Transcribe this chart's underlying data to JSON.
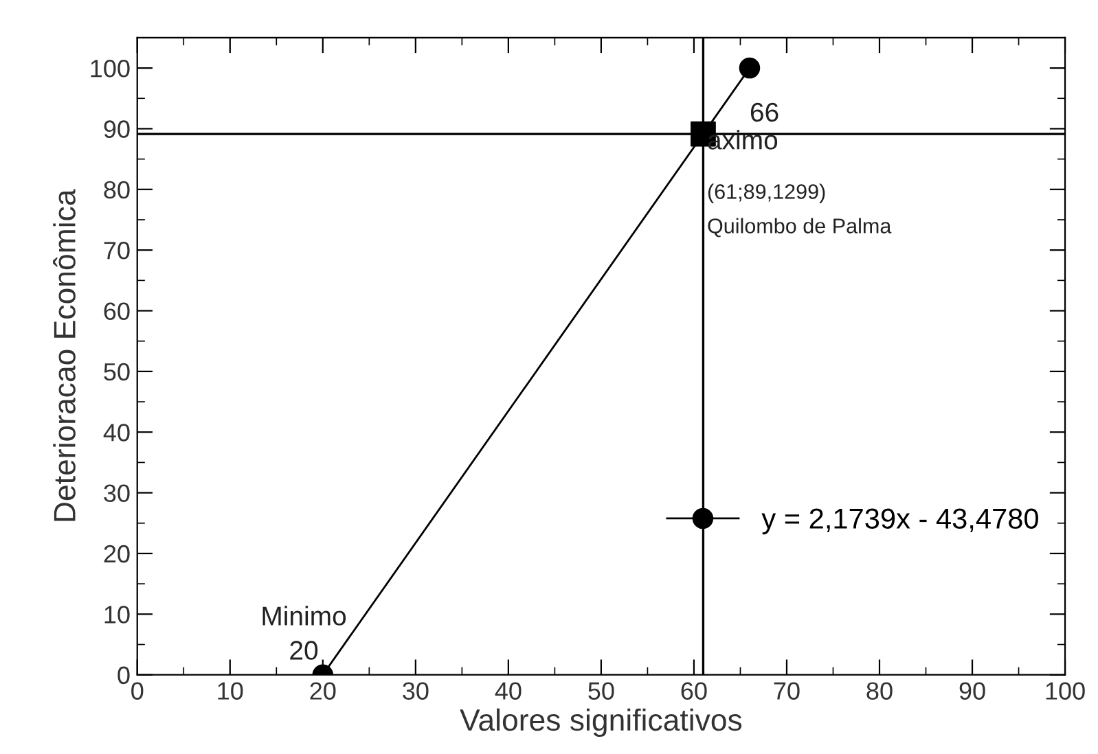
{
  "chart_data": {
    "type": "line",
    "xlabel": "Valores significativos",
    "ylabel": "Deterioracao Econômica",
    "xlim": [
      0,
      100
    ],
    "ylim": [
      0,
      105
    ],
    "xticks": [
      0,
      10,
      20,
      30,
      40,
      50,
      60,
      70,
      80,
      90,
      100
    ],
    "yticks": [
      0,
      10,
      20,
      30,
      40,
      50,
      60,
      70,
      80,
      90,
      100
    ],
    "grid": false,
    "legend": "lower right",
    "series": [
      {
        "name": "y = 2,1739x - 43,4780",
        "color": "#000000",
        "marker": "circle",
        "x": [
          20,
          66
        ],
        "values": [
          0,
          100
        ]
      },
      {
        "type": "scatter",
        "color": "#000000",
        "marker": "square",
        "x": [
          61
        ],
        "values": [
          89.1299
        ]
      }
    ],
    "ref_lines": [
      {
        "axis": "x",
        "value": 61,
        "color": "#000000"
      },
      {
        "axis": "y",
        "value": 89.1299,
        "color": "#000000"
      }
    ],
    "annotations": [
      {
        "text": "Minimo",
        "x": 20,
        "y": 0
      },
      {
        "text": "20",
        "x": 20,
        "y": 0
      },
      {
        "text": "66",
        "x": 66,
        "y": 100
      },
      {
        "text": "aximo",
        "x": 61,
        "y": 89.1299
      },
      {
        "text": "(61;89,1299)",
        "x": 61,
        "y": 89.1299
      },
      "Quilombo de Palma"
    ]
  }
}
